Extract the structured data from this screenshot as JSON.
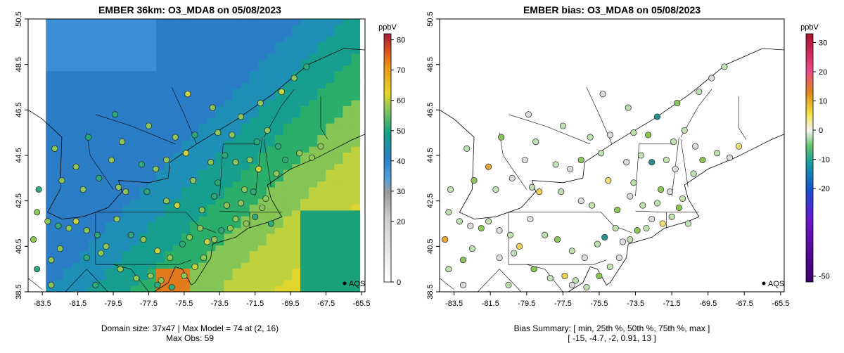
{
  "chart_data": [
    {
      "type": "map",
      "title": "EMBER 36km: O3_MDA8 on 05/08/2023",
      "x_ticks": [
        "-83.5",
        "-81.5",
        "-79.5",
        "-77.5",
        "-75.5",
        "-73.5",
        "-71.5",
        "-69.5",
        "-67.5",
        "-65.5"
      ],
      "y_ticks": [
        "38.5",
        "40.5",
        "42.5",
        "44.5",
        "46.5",
        "48.5",
        "50.5"
      ],
      "xlim": [
        -84.3,
        -65.3
      ],
      "ylim": [
        38.5,
        50.5
      ],
      "colorbar": {
        "unit": "ppbV",
        "ticks": [
          "0",
          "20",
          "30",
          "40",
          "50",
          "60",
          "70",
          "80"
        ],
        "range": [
          0,
          82
        ]
      },
      "legend_label": "AQS",
      "caption_line1": "Domain size: 37x47 | Max Model = 74 at (2, 16)",
      "caption_line2": "Max Obs: 59",
      "domain_size": "37x47",
      "max_model": 74,
      "max_obs": 59
    },
    {
      "type": "map",
      "title": "EMBER bias: O3_MDA8 on 05/08/2023",
      "x_ticks": [
        "-83.5",
        "-81.5",
        "-79.5",
        "-77.5",
        "-75.5",
        "-73.5",
        "-71.5",
        "-69.5",
        "-67.5",
        "-65.5"
      ],
      "y_ticks": [
        "38.5",
        "40.5",
        "42.5",
        "44.5",
        "46.5",
        "48.5",
        "50.5"
      ],
      "xlim": [
        -84.3,
        -65.3
      ],
      "ylim": [
        38.5,
        50.5
      ],
      "colorbar": {
        "unit": "ppbV",
        "ticks": [
          "-50",
          "-20",
          "-10",
          "0",
          "10",
          "20",
          "30"
        ],
        "range": [
          -52,
          33
        ]
      },
      "legend_label": "AQS",
      "caption_line1": "Bias Summary: [ min, 25th %, 50th %, 75th %, max ]",
      "caption_line2": "[ -15,   -4.7,   -2,   0.91,   13 ]",
      "bias_summary": {
        "min": -15,
        "p25": -4.7,
        "p50": -2,
        "p75": 0.91,
        "max": 13
      }
    }
  ]
}
